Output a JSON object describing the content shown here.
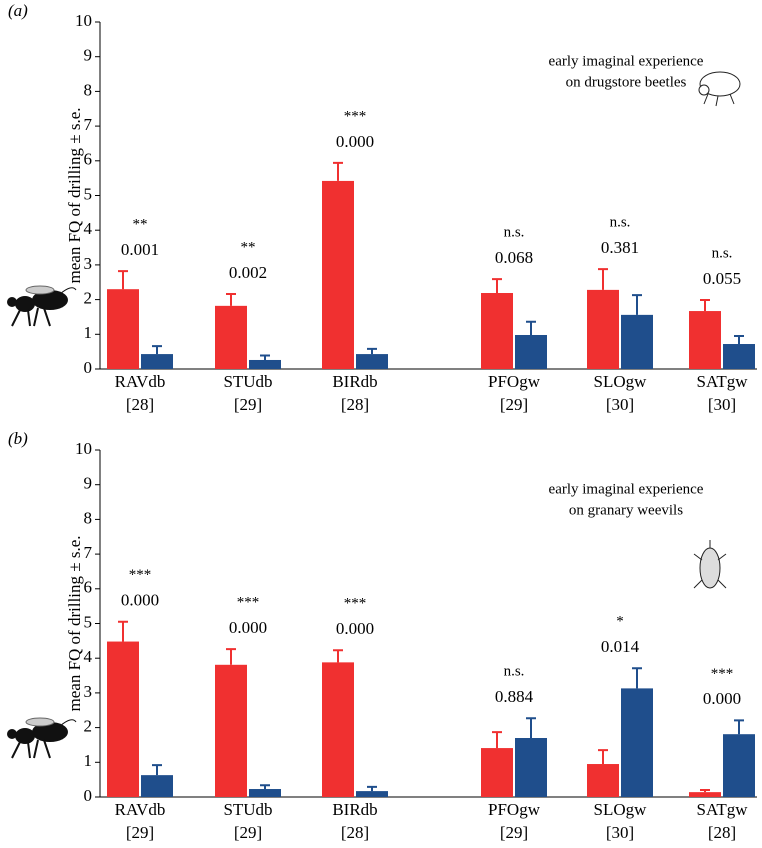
{
  "chart_data": [
    {
      "type": "bar",
      "panel_label": "(a)",
      "y_label": "mean FQ of drilling ± s.e.",
      "note": [
        "early imaginal experience",
        "on drugstore beetles"
      ],
      "categories": [
        "RAVdb",
        "STUdb",
        "BIRdb",
        "PFOgw",
        "SLOgw",
        "SATgw"
      ],
      "category_colors": [
        "#f03030",
        "#f03030",
        "#f03030",
        "#1f4e8c",
        "#1f4e8c",
        "#1f4e8c"
      ],
      "sample_sizes": [
        "[28]",
        "[29]",
        "[28]",
        "[29]",
        "[30]",
        "[30]"
      ],
      "significance": [
        "**",
        "**",
        "***",
        "n.s.",
        "n.s.",
        "n.s."
      ],
      "p_values": [
        "0.001",
        "0.002",
        "0.000",
        "0.068",
        "0.381",
        "0.055"
      ],
      "series": [
        {
          "color": "#f03030",
          "values": [
            2.3,
            1.82,
            5.42,
            2.19,
            2.28,
            1.67
          ],
          "errors": [
            0.52,
            0.34,
            0.52,
            0.4,
            0.6,
            0.32
          ]
        },
        {
          "color": "#1f4e8c",
          "values": [
            0.43,
            0.26,
            0.43,
            0.98,
            1.56,
            0.72
          ],
          "errors": [
            0.23,
            0.13,
            0.15,
            0.38,
            0.57,
            0.23
          ]
        }
      ],
      "ylim": [
        0,
        10
      ],
      "yticks": [
        0,
        1,
        2,
        3,
        4,
        5,
        6,
        7,
        8,
        9,
        10
      ]
    },
    {
      "type": "bar",
      "panel_label": "(b)",
      "y_label": "mean FQ of drilling ± s.e.",
      "note": [
        "early imaginal experience",
        "on granary weevils"
      ],
      "categories": [
        "RAVdb",
        "STUdb",
        "BIRdb",
        "PFOgw",
        "SLOgw",
        "SATgw"
      ],
      "category_colors": [
        "#f03030",
        "#f03030",
        "#f03030",
        "#1f4e8c",
        "#1f4e8c",
        "#1f4e8c"
      ],
      "sample_sizes": [
        "[29]",
        "[29]",
        "[28]",
        "[29]",
        "[30]",
        "[28]"
      ],
      "significance": [
        "***",
        "***",
        "***",
        "n.s.",
        "*",
        "***"
      ],
      "p_values": [
        "0.000",
        "0.000",
        "0.000",
        "0.884",
        "0.014",
        "0.000"
      ],
      "series": [
        {
          "color": "#f03030",
          "values": [
            4.48,
            3.81,
            3.88,
            1.41,
            0.95,
            0.14
          ],
          "errors": [
            0.57,
            0.45,
            0.35,
            0.46,
            0.4,
            0.06
          ]
        },
        {
          "color": "#1f4e8c",
          "values": [
            0.63,
            0.23,
            0.17,
            1.7,
            3.13,
            1.81
          ],
          "errors": [
            0.29,
            0.11,
            0.12,
            0.57,
            0.58,
            0.4
          ]
        }
      ],
      "ylim": [
        0,
        10
      ],
      "yticks": [
        0,
        1,
        2,
        3,
        4,
        5,
        6,
        7,
        8,
        9,
        10
      ]
    }
  ]
}
